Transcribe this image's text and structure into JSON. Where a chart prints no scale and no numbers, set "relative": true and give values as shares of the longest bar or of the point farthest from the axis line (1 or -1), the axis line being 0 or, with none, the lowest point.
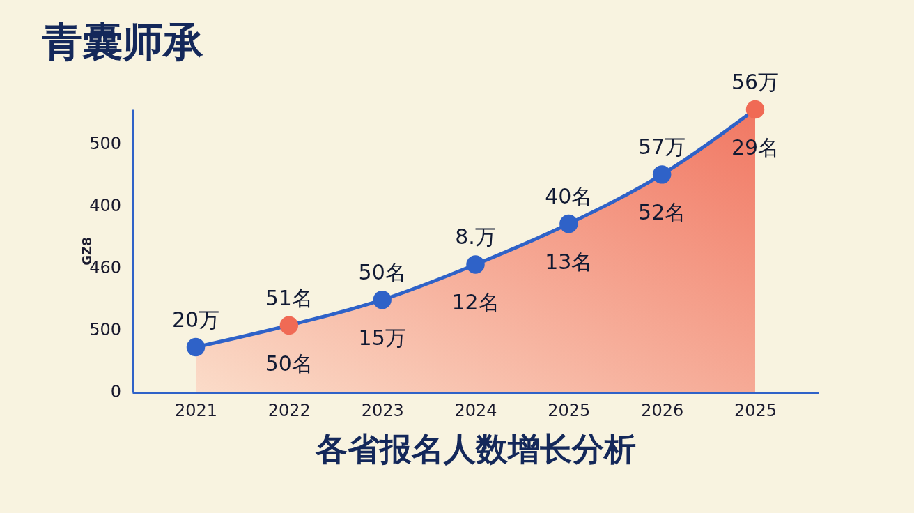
{
  "chart_data": {
    "type": "area",
    "title": "青囊师承",
    "xlabel": "各省报名人数增长分析",
    "ylabel": "GZ8",
    "relative": true,
    "categories": [
      "2021",
      "2022",
      "2023",
      "2024",
      "2025",
      "2026",
      "2025"
    ],
    "series": [
      {
        "color": "#2f62c8",
        "colors": [
          "#2f62c8",
          "#f06a55",
          "#2f62c8",
          "#2f62c8",
          "#2f62c8",
          "#2f62c8",
          "#f06a55"
        ],
        "values": [
          0.16,
          0.237,
          0.327,
          0.452,
          0.596,
          0.77,
          1
        ]
      }
    ],
    "marker": "circle",
    "grid": false,
    "annotations": [
      "500",
      "400",
      "460",
      "500",
      "0",
      "20万",
      "51名",
      "50名",
      "8.万",
      "40名",
      "57万",
      "56万",
      "50名",
      "15万",
      "12名",
      "13名",
      "52名",
      "29名"
    ]
  }
}
